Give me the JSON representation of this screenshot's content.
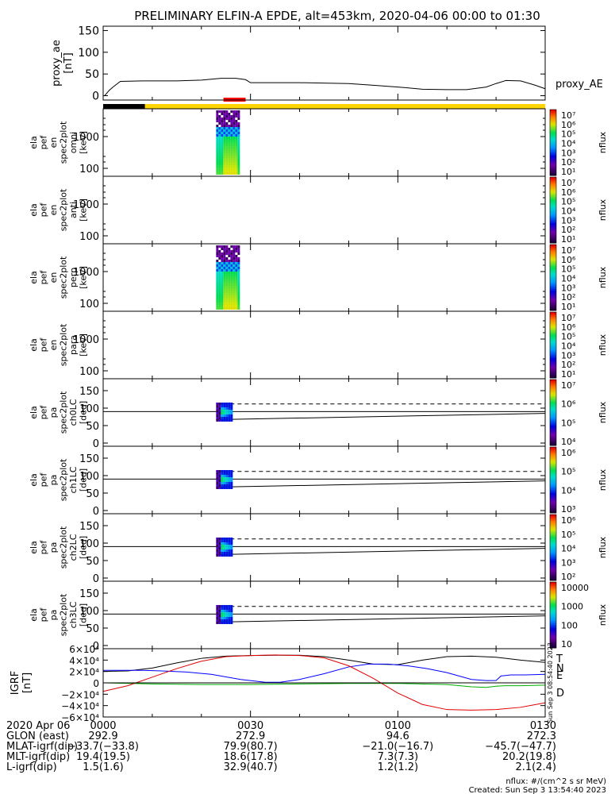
{
  "chart_data": {
    "type": "line",
    "title": "PRELIMINARY ELFIN-A EPDE, alt=453km, 2020-04-06 00:00 to 01:30",
    "x_range_min": [
      0,
      90
    ],
    "panels": [
      {
        "id": "proxy_ae",
        "ylabel": [
          "proxy_ae",
          "[nT]"
        ],
        "ylim": [
          -10,
          160
        ],
        "yticks": [
          "150",
          "100",
          "50",
          "0"
        ],
        "ytick_values": [
          150,
          100,
          50,
          0
        ],
        "legend": "proxy_AE",
        "series": [
          {
            "name": "proxy_AE",
            "x": [
              0.3,
              1.2,
              2.0,
              3.5,
              8,
              15,
              20,
              24,
              27,
              29,
              30,
              40,
              50,
              55,
              60,
              65,
              70,
              74,
              78,
              80,
              82,
              85,
              88,
              90
            ],
            "y": [
              0,
              12,
              20,
              33,
              34,
              34,
              36,
              40,
              40,
              37,
              30,
              30,
              28,
              24,
              20,
              15,
              14,
              14,
              20,
              28,
              35,
              34,
              24,
              16
            ]
          }
        ]
      },
      {
        "id": "omni",
        "type": "heatmap",
        "ylabel": [
          "ela",
          "pef",
          "en",
          "spec2plot",
          "omni",
          "[keV]"
        ],
        "yticks": [
          "1000",
          "100"
        ],
        "colorbar_ticks": [
          "10⁷",
          "10⁶",
          "10⁵",
          "10⁴",
          "10³",
          "10²",
          "10¹"
        ],
        "colorbar_label": "nflux"
      },
      {
        "id": "anti",
        "type": "heatmap",
        "ylabel": [
          "ela",
          "pef",
          "en",
          "spec2plot",
          "anti",
          "[keV]"
        ],
        "yticks": [
          "1000",
          "100"
        ],
        "colorbar_ticks": [
          "10⁷",
          "10⁶",
          "10⁵",
          "10⁴",
          "10³",
          "10²",
          "10¹"
        ],
        "colorbar_label": "nflux"
      },
      {
        "id": "perp",
        "type": "heatmap",
        "ylabel": [
          "ela",
          "pef",
          "en",
          "spec2plot",
          "perp",
          "[keV]"
        ],
        "yticks": [
          "1000",
          "100"
        ],
        "colorbar_ticks": [
          "10⁷",
          "10⁶",
          "10⁵",
          "10⁴",
          "10³",
          "10²",
          "10¹"
        ],
        "colorbar_label": "nflux"
      },
      {
        "id": "para",
        "type": "heatmap",
        "ylabel": [
          "ela",
          "pef",
          "en",
          "spec2plot",
          "para",
          "[keV]"
        ],
        "yticks": [
          "1000",
          "100"
        ],
        "colorbar_ticks": [
          "10⁷",
          "10⁶",
          "10⁵",
          "10⁴",
          "10³",
          "10²",
          "10¹"
        ],
        "colorbar_label": "nflux"
      },
      {
        "id": "ch0LC",
        "type": "heatmap",
        "ylabel": [
          "ela",
          "pef",
          "pa",
          "spec2plot",
          "ch0LC",
          "[deg]"
        ],
        "yticks": [
          "150",
          "100",
          "50",
          "0"
        ],
        "colorbar_ticks": [
          "10⁷",
          "10⁶",
          "10⁵",
          "10⁴"
        ],
        "colorbar_label": "nflux",
        "lines": {
          "x": [
            23,
            90
          ],
          "mid": [
            90,
            90
          ],
          "dash": [
            112,
            112
          ],
          "lower": [
            67,
            85
          ]
        }
      },
      {
        "id": "ch1LC",
        "type": "heatmap",
        "ylabel": [
          "ela",
          "pef",
          "pa",
          "spec2plot",
          "ch1LC",
          "[deg]"
        ],
        "yticks": [
          "150",
          "100",
          "50",
          "0"
        ],
        "colorbar_ticks": [
          "10⁶",
          "10⁵",
          "10⁴",
          "10³"
        ],
        "colorbar_label": "nflux",
        "lines": {
          "x": [
            23,
            90
          ],
          "mid": [
            90,
            90
          ],
          "dash": [
            112,
            112
          ],
          "lower": [
            67,
            85
          ]
        }
      },
      {
        "id": "ch2LC",
        "type": "heatmap",
        "ylabel": [
          "ela",
          "pef",
          "pa",
          "spec2plot",
          "ch2LC",
          "[deg]"
        ],
        "yticks": [
          "150",
          "100",
          "50",
          "0"
        ],
        "colorbar_ticks": [
          "10⁶",
          "10⁵",
          "10⁴",
          "10³",
          "10²"
        ],
        "colorbar_label": "nflux",
        "lines": {
          "x": [
            23,
            90
          ],
          "mid": [
            90,
            90
          ],
          "dash": [
            112,
            112
          ],
          "lower": [
            67,
            85
          ]
        }
      },
      {
        "id": "ch3LC",
        "type": "heatmap",
        "ylabel": [
          "ela",
          "pef",
          "pa",
          "spec2plot",
          "ch3LC",
          "[deg]"
        ],
        "yticks": [
          "150",
          "100",
          "50",
          "0"
        ],
        "colorbar_ticks": [
          "10000",
          "1000",
          "100",
          "10"
        ],
        "colorbar_label": "nflux",
        "lines": {
          "x": [
            23,
            90
          ],
          "mid": [
            90,
            90
          ],
          "dash": [
            112,
            112
          ],
          "lower": [
            67,
            85
          ]
        }
      },
      {
        "id": "igrf",
        "ylabel": [
          "IGRF",
          "[nT]"
        ],
        "ylim": [
          -60000,
          60000
        ],
        "yticks": [
          "6×10⁴",
          "4×10⁴",
          "2×10⁴",
          "0",
          "−2×10⁴",
          "−4×10⁴",
          "−6×10⁴"
        ],
        "ytick_values": [
          60000,
          40000,
          20000,
          0,
          -20000,
          -40000,
          -60000
        ],
        "side_note": "Sun Sep 3 08:54:40 2023",
        "series": [
          {
            "name": "T",
            "color": "#000000",
            "x": [
              0,
              5,
              10,
              15,
              20,
              25,
              30,
              35,
              40,
              45,
              50,
              55,
              60,
              65,
              70,
              75,
              80,
              85,
              90
            ],
            "y": [
              20000,
              21000,
              26000,
              35000,
              43000,
              47000,
              48000,
              48500,
              48500,
              46000,
              40000,
              33000,
              32000,
              40000,
              46000,
              47000,
              45000,
              40000,
              36000
            ]
          },
          {
            "name": "N",
            "color": "#0000ff",
            "x": [
              0,
              3,
              8,
              12,
              17,
              22,
              28,
              33,
              36,
              40,
              45,
              50,
              54,
              58,
              62,
              66,
              70,
              75,
              78,
              80,
              81,
              83,
              86,
              90
            ],
            "y": [
              22000,
              22000,
              22000,
              21000,
              19000,
              15000,
              6000,
              1000,
              1000,
              6000,
              16000,
              28000,
              33000,
              33000,
              30000,
              25000,
              18000,
              6000,
              4000,
              4000,
              12000,
              14000,
              14000,
              15000
            ]
          },
          {
            "name": "E",
            "color": "#00b000",
            "x": [
              0,
              10,
              20,
              30,
              40,
              50,
              60,
              70,
              75,
              78,
              80,
              82,
              85,
              90
            ],
            "y": [
              0,
              -2000,
              -3000,
              -3000,
              -2000,
              -1000,
              -1000,
              -3000,
              -7000,
              -8000,
              -6000,
              -5000,
              -5000,
              -4000
            ]
          },
          {
            "name": "D",
            "color": "#e00000",
            "x": [
              0,
              5,
              10,
              15,
              20,
              25,
              30,
              35,
              40,
              45,
              50,
              55,
              60,
              65,
              70,
              75,
              80,
              85,
              90
            ],
            "y": [
              -15000,
              -5000,
              10000,
              25000,
              38000,
              46000,
              48000,
              49000,
              48000,
              44000,
              30000,
              8000,
              -18000,
              -38000,
              -47000,
              -48000,
              -47000,
              -43000,
              -35000
            ]
          }
        ]
      }
    ],
    "heatmap_blobs": [
      {
        "panel": "omni",
        "x": [
          23,
          28
        ]
      },
      {
        "panel": "perp",
        "x": [
          23,
          28
        ]
      },
      {
        "panel": "ch0LC",
        "x": [
          23,
          28
        ]
      },
      {
        "panel": "ch1LC",
        "x": [
          23,
          28
        ]
      },
      {
        "panel": "ch2LC",
        "x": [
          23,
          28
        ]
      },
      {
        "panel": "ch3LC",
        "x": [
          23,
          28
        ]
      }
    ],
    "bars": {
      "black": {
        "x": [
          0,
          8.5
        ],
        "color": "#000000"
      },
      "yellow": {
        "x": [
          8.5,
          90
        ],
        "color": "#ffd400"
      },
      "red": {
        "x": [
          24.5,
          29
        ],
        "color": "#ff0000"
      }
    },
    "x_ticks": [
      {
        "min": 0,
        "time": "0000",
        "glon": "292.9",
        "mlat": "−33.7(−33.8)",
        "mlt": "19.4(19.5)",
        "l": "1.5(1.6)"
      },
      {
        "min": 30,
        "time": "0030",
        "glon": "272.9",
        "mlat": "79.9(80.7)",
        "mlt": "18.6(17.8)",
        "l": "32.9(40.7)"
      },
      {
        "min": 60,
        "time": "0100",
        "glon": "94.6",
        "mlat": "−21.0(−16.7)",
        "mlt": "7.3(7.3)",
        "l": "1.2(1.2)"
      },
      {
        "min": 90,
        "time": "0130",
        "glon": "272.3",
        "mlat": "−45.7(−47.7)",
        "mlt": "20.2(19.8)",
        "l": "2.1(2.4)"
      }
    ],
    "row_labels": {
      "time": "2020 Apr 06",
      "glon": "GLON (east)",
      "mlat": "MLAT-igrf(dip)",
      "mlt": "MLT-igrf(dip)",
      "l": "L-igrf(dip)"
    },
    "footer": {
      "units": "nflux: #/(cm^2 s sr MeV)",
      "created": "Created: Sun Sep  3 13:54:40 2023"
    }
  }
}
